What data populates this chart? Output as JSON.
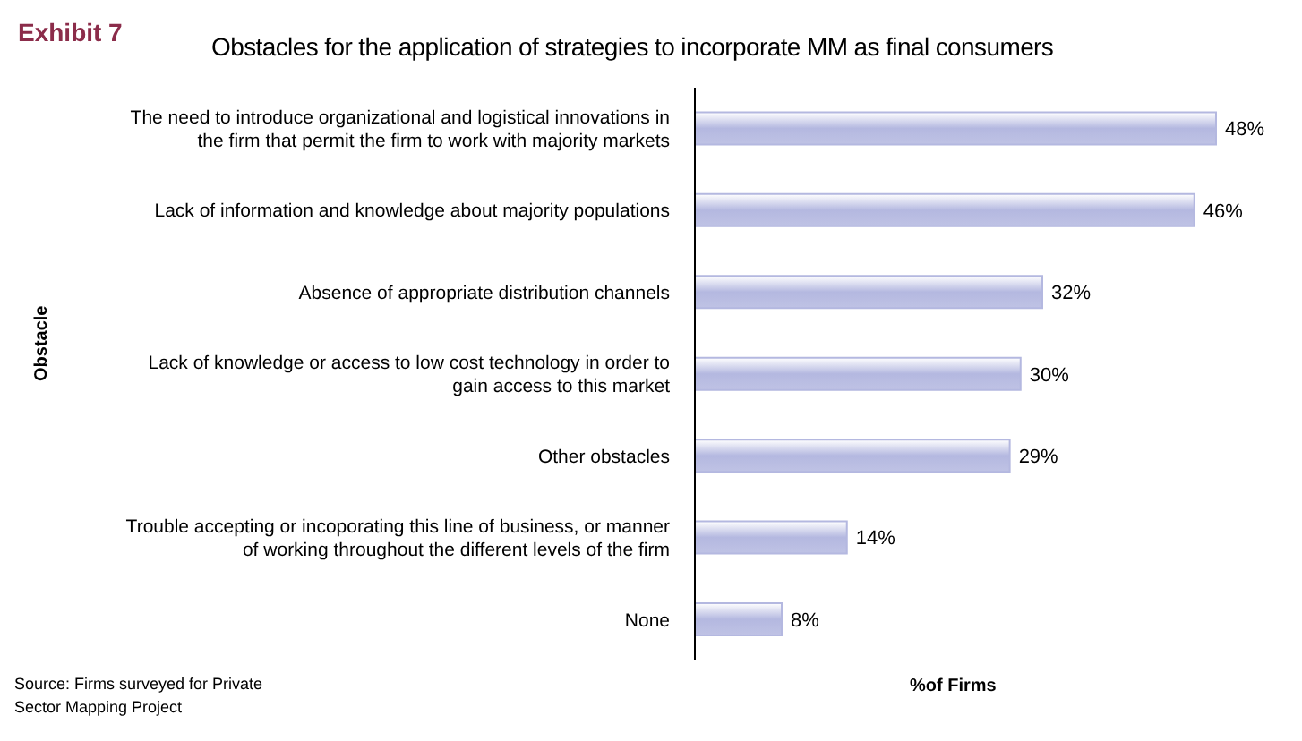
{
  "chart_data": {
    "type": "bar",
    "orientation": "horizontal",
    "title": "Obstacles for the application of strategies to incorporate MM as final consumers",
    "subtitle": "Exhibit 7",
    "xlabel": "%of Firms",
    "ylabel": "Obstacle",
    "categories": [
      "The need to introduce organizational and logistical innovations in the firm that permit the firm to work with majority markets",
      "Lack of information and knowledge about majority populations",
      "Absence of appropriate distribution channels",
      "Lack of knowledge or access to low cost technology in order to gain access to this market",
      "Other obstacles",
      "Trouble accepting or incoporating this line of business, or manner of working throughout the different levels of the firm",
      "None"
    ],
    "values": [
      48,
      46,
      32,
      30,
      29,
      14,
      8
    ],
    "value_labels": [
      "48%",
      "46%",
      "32%",
      "30%",
      "29%",
      "14%",
      "8%"
    ],
    "color": "#b4b8e0",
    "tick_labels": "y",
    "annotations": [
      "Source: Firms surveyed for Private Sector Mapping Project"
    ]
  }
}
